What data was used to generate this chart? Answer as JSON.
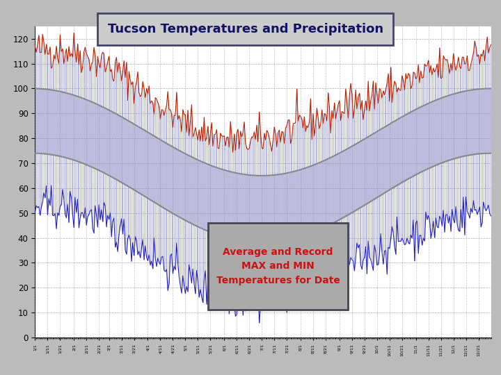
{
  "title": "Tucson Temperatures and Precipitation",
  "annotation": "Average and Record\nMAX and MIN\nTemperatures for Date",
  "ylim": [
    0,
    125
  ],
  "yticks": [
    0,
    10,
    20,
    30,
    40,
    50,
    60,
    70,
    80,
    90,
    100,
    110,
    120
  ],
  "num_days": 365,
  "rec_max_color": "#BB2200",
  "rec_min_color": "#2222BB",
  "fill_between_color": "#BBBBDD",
  "bar_color": "#3333AA",
  "avg_curve_color": "#888888",
  "background_color": "#BBBBBB",
  "plot_bg_color": "#FFFFFF",
  "title_bg": "#CCCCCC",
  "title_border": "#444466",
  "title_color": "#111166",
  "annotation_color": "#CC1111",
  "annotation_bg": "#AAAAAA",
  "annotation_border": "#444455",
  "grid_color": "#888888",
  "seed": 42
}
